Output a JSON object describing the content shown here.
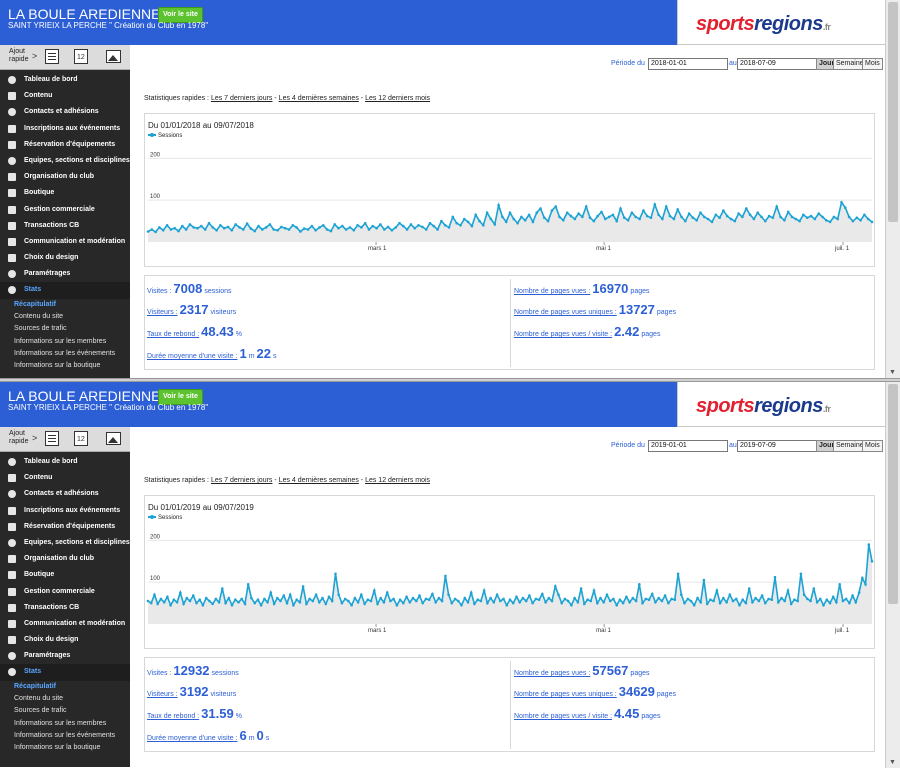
{
  "header": {
    "club_name": "LA BOULE AREDIENNE",
    "visit_button": "Voir le site",
    "subtitle": "SAINT YRIEIX LA PERCHE \" Création du Club en 1978\"",
    "logo_sports": "sports",
    "logo_regions": "regions",
    "logo_fr": ".fr"
  },
  "quick_add": {
    "label": "Ajout rapide",
    "calendar_day": "12"
  },
  "menu": [
    {
      "label": "Tableau de bord"
    },
    {
      "label": "Contenu"
    },
    {
      "label": "Contacts et adhésions"
    },
    {
      "label": "Inscriptions aux événements"
    },
    {
      "label": "Réservation d'équipements"
    },
    {
      "label": "Equipes, sections et disciplines"
    },
    {
      "label": "Organisation du club"
    },
    {
      "label": "Boutique"
    },
    {
      "label": "Gestion commerciale"
    },
    {
      "label": "Transactions CB"
    },
    {
      "label": "Communication et modération"
    },
    {
      "label": "Choix du design"
    },
    {
      "label": "Paramétrages"
    },
    {
      "label": "Stats"
    }
  ],
  "stats_submenu": [
    {
      "label": "Récapitulatif"
    },
    {
      "label": "Contenu du site"
    },
    {
      "label": "Sources de trafic"
    },
    {
      "label": "Informations sur les membres"
    },
    {
      "label": "Informations sur les événements"
    },
    {
      "label": "Informations sur la boutique"
    }
  ],
  "period": {
    "label_from": "Période du",
    "label_to": "au",
    "buttons": [
      "Jour",
      "Semaine",
      "Mois"
    ]
  },
  "quick_stats": {
    "label": "Statistiques rapides :",
    "links": [
      "Les 7 derniers jours",
      "Les 4 dernières semaines",
      "Les 12 derniers mois"
    ],
    "sep": "-"
  },
  "stat_labels": {
    "visits": "Visites :",
    "visitors": "Visiteurs :",
    "bounce": "Taux de rebond :",
    "duration": "Durée moyenne d'une visite :",
    "pages": "Nombre de pages vues :",
    "unique_pages": "Nombre de pages vues uniques :",
    "pages_per_visit": "Nombre de pages vues / visite :",
    "unit_sessions": "sessions",
    "unit_visitors": "visiteurs",
    "unit_percent": "%",
    "unit_m": "m",
    "unit_s": "s",
    "unit_pages": "pages"
  },
  "panels": [
    {
      "date_from": "2018-01-01",
      "date_to": "2018-07-09",
      "chart_title": "Du 01/01/2018 au 09/07/2018",
      "visits": "7008",
      "visitors": "2317",
      "bounce": "48.43",
      "duration_m": "1",
      "duration_s": "22",
      "pages": "16970",
      "unique_pages": "13727",
      "pages_per_visit": "2.42"
    },
    {
      "date_from": "2019-01-01",
      "date_to": "2019-07-09",
      "chart_title": "Du 01/01/2019 au 09/07/2019",
      "visits": "12932",
      "visitors": "3192",
      "bounce": "31.59",
      "duration_m": "6",
      "duration_s": "0",
      "pages": "57567",
      "unique_pages": "34629",
      "pages_per_visit": "4.45"
    }
  ],
  "chart_data": [
    {
      "type": "area",
      "title": "Du 01/01/2018 au 09/07/2018",
      "series": [
        {
          "name": "Sessions",
          "values": [
            25,
            30,
            24,
            35,
            28,
            40,
            30,
            33,
            26,
            38,
            30,
            42,
            35,
            33,
            38,
            30,
            45,
            35,
            28,
            40,
            33,
            36,
            28,
            42,
            35,
            30,
            44,
            32,
            26,
            38,
            30,
            35,
            42,
            30,
            28,
            36,
            33,
            30,
            40,
            35,
            25,
            32,
            30,
            38,
            28,
            35,
            40,
            30,
            26,
            42,
            33,
            38,
            30,
            35,
            28,
            40,
            35,
            45,
            30,
            38,
            33,
            42,
            30,
            36,
            28,
            35,
            45,
            38,
            30,
            42,
            33,
            40,
            36,
            30,
            45,
            38,
            30,
            50,
            40,
            35,
            60,
            45,
            40,
            55,
            48,
            38,
            65,
            50,
            40,
            70,
            55,
            42,
            88,
            60,
            48,
            70,
            55,
            45,
            60,
            52,
            65,
            48,
            70,
            80,
            58,
            50,
            75,
            85,
            60,
            52,
            70,
            62,
            55,
            68,
            60,
            85,
            58,
            50,
            62,
            72,
            55,
            60,
            65,
            50,
            80,
            58,
            52,
            70,
            60,
            55,
            75,
            62,
            58,
            90,
            65,
            55,
            85,
            62,
            55,
            78,
            60,
            50,
            68,
            58,
            52,
            70,
            60,
            55,
            48,
            65,
            58,
            75,
            62,
            55,
            50,
            68,
            60,
            80,
            65,
            55,
            70,
            60,
            50,
            62,
            58,
            85,
            60,
            52,
            72,
            60,
            55,
            50,
            65,
            58,
            62,
            55,
            68,
            60,
            52,
            48,
            60,
            55,
            95,
            82,
            60,
            50,
            58,
            52,
            65,
            55,
            48
          ]
        }
      ],
      "x_ticks": [
        "mars 1",
        "mai 1",
        "juil. 1"
      ],
      "y_ticks": [
        100,
        200
      ],
      "ylim": [
        0,
        220
      ]
    },
    {
      "type": "area",
      "title": "Du 01/01/2019 au 09/07/2019",
      "series": [
        {
          "name": "Sessions",
          "values": [
            55,
            50,
            70,
            48,
            60,
            52,
            65,
            45,
            58,
            52,
            75,
            48,
            62,
            55,
            68,
            50,
            58,
            45,
            62,
            55,
            48,
            60,
            52,
            85,
            50,
            62,
            45,
            58,
            52,
            60,
            48,
            95,
            62,
            50,
            58,
            45,
            60,
            52,
            75,
            48,
            62,
            55,
            68,
            50,
            70,
            45,
            58,
            52,
            90,
            48,
            60,
            55,
            70,
            52,
            62,
            48,
            65,
            55,
            120,
            70,
            50,
            60,
            55,
            45,
            62,
            52,
            70,
            48,
            58,
            55,
            80,
            48,
            62,
            52,
            75,
            55,
            60,
            45,
            58,
            50,
            65,
            52,
            62,
            55,
            68,
            50,
            60,
            58,
            72,
            52,
            62,
            55,
            115,
            70,
            50,
            60,
            55,
            45,
            62,
            52,
            75,
            48,
            58,
            55,
            80,
            50,
            62,
            52,
            70,
            55,
            60,
            45,
            58,
            50,
            65,
            52,
            62,
            55,
            68,
            50,
            60,
            58,
            72,
            52,
            62,
            55,
            90,
            70,
            50,
            60,
            55,
            45,
            62,
            52,
            85,
            48,
            58,
            55,
            80,
            50,
            62,
            52,
            70,
            55,
            60,
            45,
            58,
            50,
            65,
            52,
            62,
            55,
            95,
            50,
            60,
            58,
            72,
            52,
            62,
            55,
            68,
            50,
            60,
            58,
            120,
            70,
            50,
            60,
            55,
            45,
            62,
            52,
            105,
            48,
            58,
            55,
            80,
            50,
            62,
            52,
            70,
            55,
            60,
            45,
            58,
            50,
            85,
            52,
            62,
            55,
            68,
            50,
            60,
            58,
            112,
            52,
            62,
            55,
            80,
            48,
            58,
            55,
            120,
            70,
            60,
            55,
            85,
            52,
            60,
            45,
            58,
            50,
            65,
            52,
            95,
            55,
            60,
            50,
            68,
            52,
            75,
            110,
            95,
            190,
            150
          ]
        }
      ],
      "x_ticks": [
        "mars 1",
        "mai 1",
        "juil. 1"
      ],
      "y_ticks": [
        100,
        200
      ],
      "ylim": [
        0,
        220
      ]
    }
  ]
}
